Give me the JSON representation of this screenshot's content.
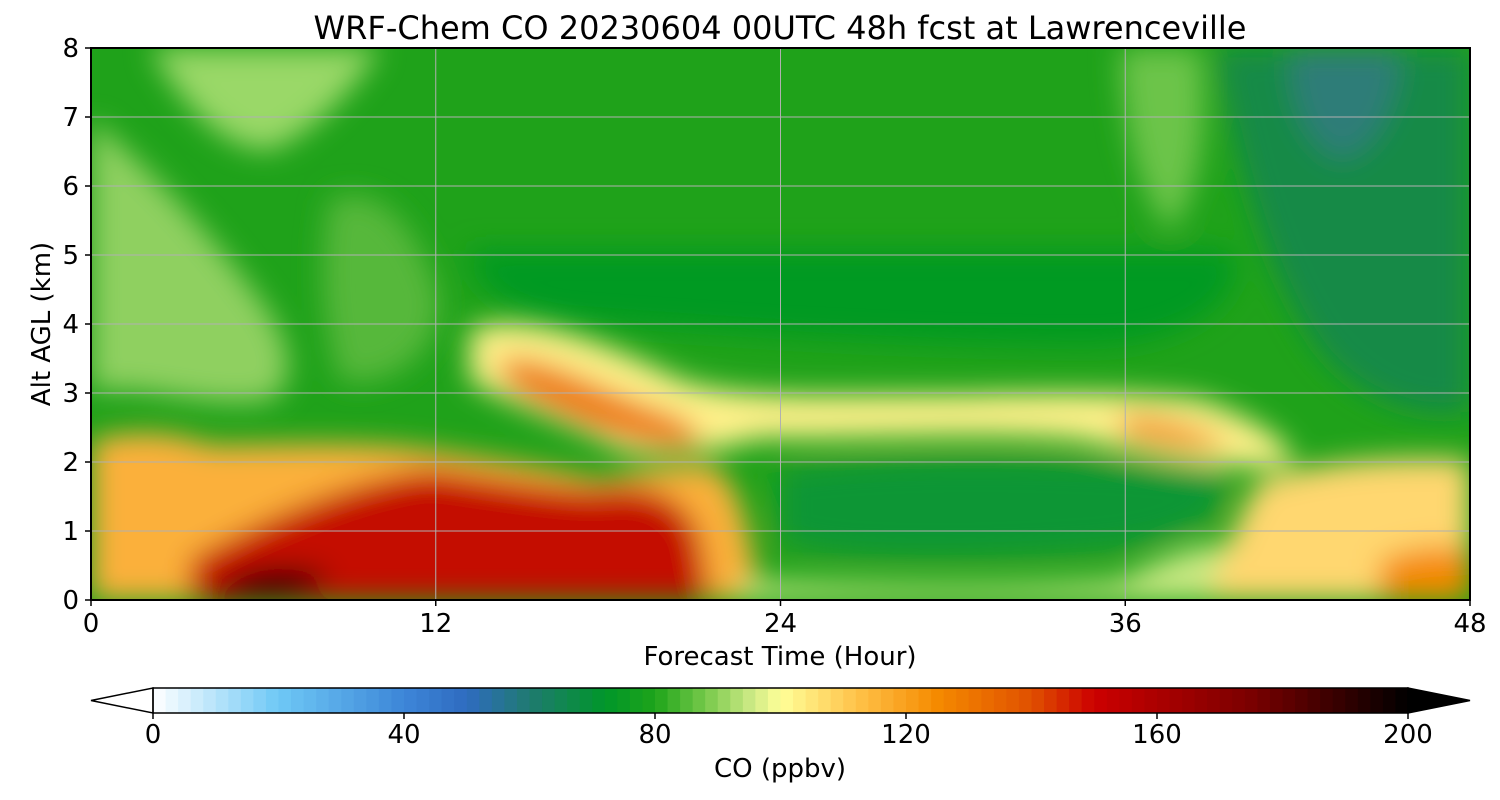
{
  "chart_data": {
    "type": "heatmap",
    "title": "WRF-Chem CO  20230604 00UTC 48h fcst at Lawrenceville",
    "xlabel": "Forecast Time (Hour)",
    "ylabel": "Alt AGL (km)",
    "xlim": [
      0,
      48
    ],
    "ylim": [
      0,
      8
    ],
    "x_ticks": [
      "0",
      "12",
      "24",
      "36",
      "48"
    ],
    "y_ticks": [
      "0",
      "1",
      "2",
      "3",
      "4",
      "5",
      "6",
      "7",
      "8"
    ],
    "grid": true,
    "colorbar": {
      "label": "CO  (ppbv)",
      "min": 0,
      "max": 200,
      "ticks": [
        "0",
        "40",
        "80",
        "120",
        "160",
        "200"
      ],
      "extend": "both",
      "orientation": "horizontal",
      "placement": "bottom",
      "colors": [
        {
          "value": 0,
          "color": "#ffffff"
        },
        {
          "value": 20,
          "color": "#6ec8f5"
        },
        {
          "value": 40,
          "color": "#3d86d8"
        },
        {
          "value": 50,
          "color": "#2e6bc0"
        },
        {
          "value": 60,
          "color": "#1f7a70"
        },
        {
          "value": 72,
          "color": "#00962a"
        },
        {
          "value": 80,
          "color": "#1ea41a"
        },
        {
          "value": 88,
          "color": "#76c84a"
        },
        {
          "value": 95,
          "color": "#c8e882"
        },
        {
          "value": 100,
          "color": "#ffff99"
        },
        {
          "value": 112,
          "color": "#ffc34a"
        },
        {
          "value": 125,
          "color": "#f58a00"
        },
        {
          "value": 140,
          "color": "#e05000"
        },
        {
          "value": 150,
          "color": "#cc0000"
        },
        {
          "value": 175,
          "color": "#7a0000"
        },
        {
          "value": 200,
          "color": "#000000"
        }
      ]
    }
  }
}
